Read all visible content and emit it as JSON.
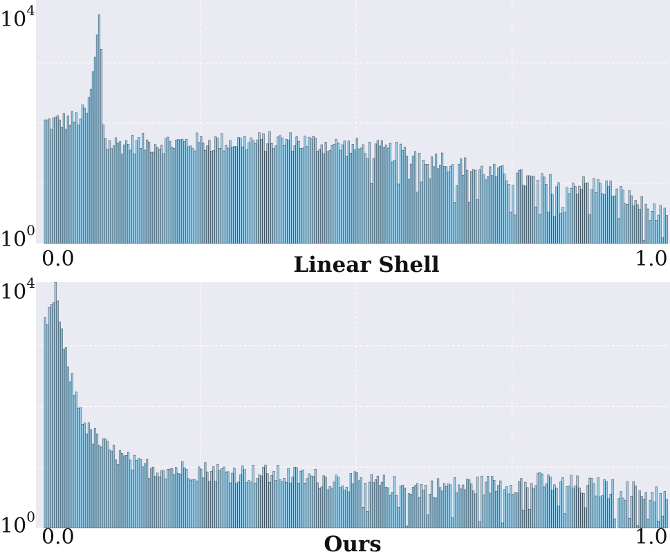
{
  "chart_data": [
    {
      "type": "bar",
      "title": "Linear Shell",
      "xlabel": "",
      "ylabel": "",
      "y_scale": "log",
      "xlim": [
        0.0,
        1.0
      ],
      "ylim_exponent": [
        0,
        4
      ],
      "x_ticks": [
        "0.0",
        "1.0"
      ],
      "y_ticks": [
        {
          "base": "10",
          "exp": "0"
        },
        {
          "base": "10",
          "exp": "4"
        }
      ],
      "grid": true,
      "colors": {
        "fill": "#9ccfea",
        "edge": "#1c2a33",
        "background": "#eaeaf2",
        "grid": "#ffffff"
      },
      "bins": 300,
      "profile_log10": [
        {
          "x": 0.0,
          "y": 2.0
        },
        {
          "x": 0.05,
          "y": 2.05
        },
        {
          "x": 0.07,
          "y": 2.2
        },
        {
          "x": 0.08,
          "y": 2.9
        },
        {
          "x": 0.09,
          "y": 3.9
        },
        {
          "x": 0.095,
          "y": 2.0
        },
        {
          "x": 0.1,
          "y": 1.65
        },
        {
          "x": 0.4,
          "y": 1.7
        },
        {
          "x": 0.62,
          "y": 1.45
        },
        {
          "x": 0.7,
          "y": 1.2
        },
        {
          "x": 0.8,
          "y": 1.0
        },
        {
          "x": 0.9,
          "y": 0.95
        },
        {
          "x": 1.0,
          "y": 0.4
        }
      ]
    },
    {
      "type": "bar",
      "title": "Ours",
      "xlabel": "",
      "ylabel": "",
      "y_scale": "log",
      "xlim": [
        0.0,
        1.0
      ],
      "ylim_exponent": [
        0,
        4
      ],
      "x_ticks": [
        "0.0",
        "1.0"
      ],
      "y_ticks": [
        {
          "base": "10",
          "exp": "0"
        },
        {
          "base": "10",
          "exp": "4"
        }
      ],
      "grid": true,
      "colors": {
        "fill": "#9ccfea",
        "edge": "#1c2a33",
        "background": "#eaeaf2",
        "grid": "#ffffff"
      },
      "bins": 300,
      "profile_log10": [
        {
          "x": 0.0,
          "y": 3.3
        },
        {
          "x": 0.01,
          "y": 3.5
        },
        {
          "x": 0.018,
          "y": 4.0
        },
        {
          "x": 0.03,
          "y": 3.0
        },
        {
          "x": 0.05,
          "y": 2.2
        },
        {
          "x": 0.07,
          "y": 1.6
        },
        {
          "x": 0.1,
          "y": 1.3
        },
        {
          "x": 0.15,
          "y": 1.0
        },
        {
          "x": 0.4,
          "y": 0.85
        },
        {
          "x": 0.6,
          "y": 0.65
        },
        {
          "x": 0.8,
          "y": 0.75
        },
        {
          "x": 1.0,
          "y": 0.55
        }
      ]
    }
  ]
}
